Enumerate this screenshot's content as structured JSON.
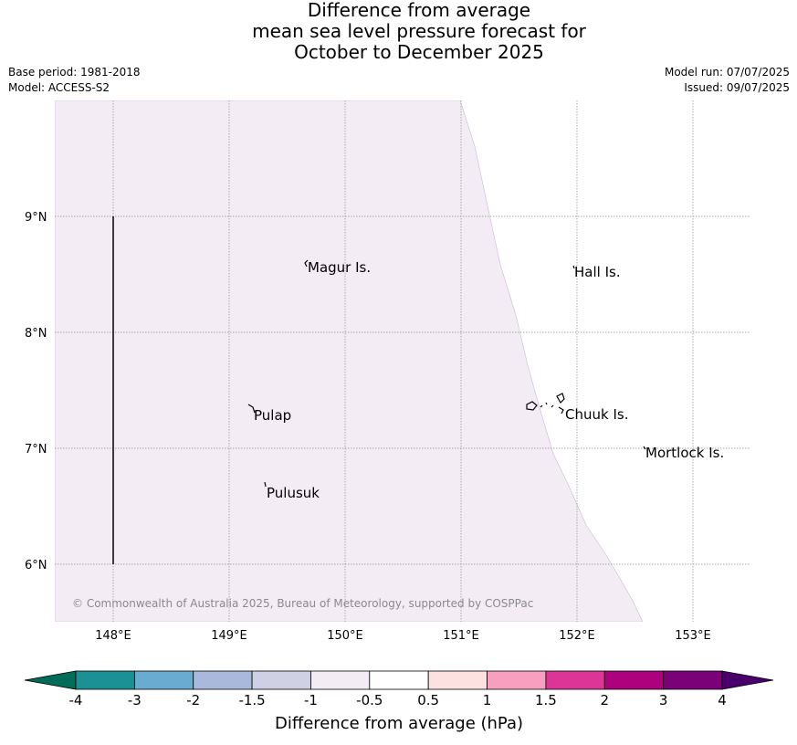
{
  "header": {
    "title_lines": [
      "Difference from average",
      "mean sea level pressure forecast for",
      "October to December 2025"
    ],
    "base_period": "Base period: 1981-2018",
    "model": "Model: ACCESS-S2",
    "model_run": "Model run: 07/07/2025",
    "issued": "Issued: 09/07/2025"
  },
  "map": {
    "lon_labels": [
      "148°E",
      "149°E",
      "150°E",
      "151°E",
      "152°E",
      "153°E"
    ],
    "lat_labels": [
      "9°N",
      "8°N",
      "7°N",
      "6°N"
    ],
    "places": [
      {
        "name": "Magur Is."
      },
      {
        "name": "Hall Is."
      },
      {
        "name": "Pulap"
      },
      {
        "name": "Chuuk Is."
      },
      {
        "name": "Mortlock Is."
      },
      {
        "name": "Pulusuk"
      }
    ],
    "fill_class_color": "#f3ecf5",
    "copyright": "© Commonwealth of Australia 2025, Bureau of Meteorology, supported by COSPPac"
  },
  "colorbar": {
    "title": "Difference from average (hPa)",
    "tick_labels": [
      "-4",
      "-3",
      "-2",
      "-1.5",
      "-1",
      "-0.5",
      "0.5",
      "1",
      "1.5",
      "2",
      "3",
      "4"
    ],
    "colors": [
      "#1b9196",
      "#6aabd1",
      "#a8b9db",
      "#d0d0e5",
      "#f3ecf5",
      "#ffffff",
      "#fde0e0",
      "#f89fbf",
      "#dd3497",
      "#ae017e",
      "#7a0177"
    ],
    "under_color": "#016c59",
    "over_color": "#49006a"
  }
}
